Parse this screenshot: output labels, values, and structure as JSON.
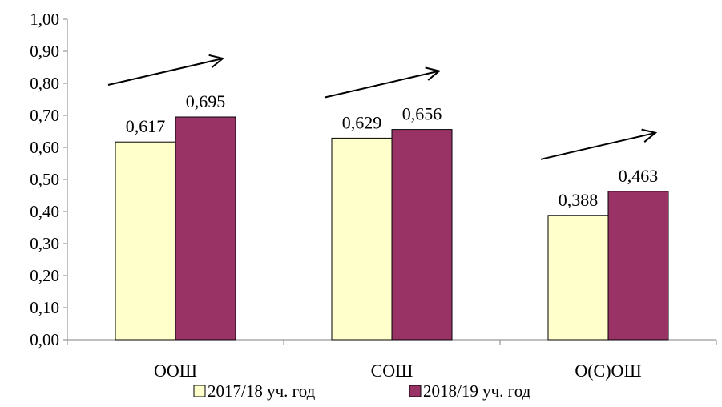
{
  "chart_data": {
    "type": "bar",
    "categories": [
      "ООШ",
      "СОШ",
      "О(С)ОШ"
    ],
    "series": [
      {
        "name": "2017/18 уч. год",
        "values": [
          0.617,
          0.629,
          0.388
        ],
        "color": "#FFFFCC"
      },
      {
        "name": "2018/19 уч. год",
        "values": [
          0.695,
          0.656,
          0.463
        ],
        "color": "#993366"
      }
    ],
    "data_labels": [
      [
        "0,617",
        "0,629",
        "0,388"
      ],
      [
        "0,695",
        "0,656",
        "0,463"
      ]
    ],
    "y_ticks": [
      "0,00",
      "0,10",
      "0,20",
      "0,30",
      "0,40",
      "0,50",
      "0,60",
      "0,70",
      "0,80",
      "0,90",
      "1,00"
    ],
    "ylim": [
      0,
      1
    ],
    "grid": false,
    "legend_position": "bottom",
    "annotations": "upward trend arrows above each category",
    "title": "",
    "xlabel": "",
    "ylabel": ""
  }
}
